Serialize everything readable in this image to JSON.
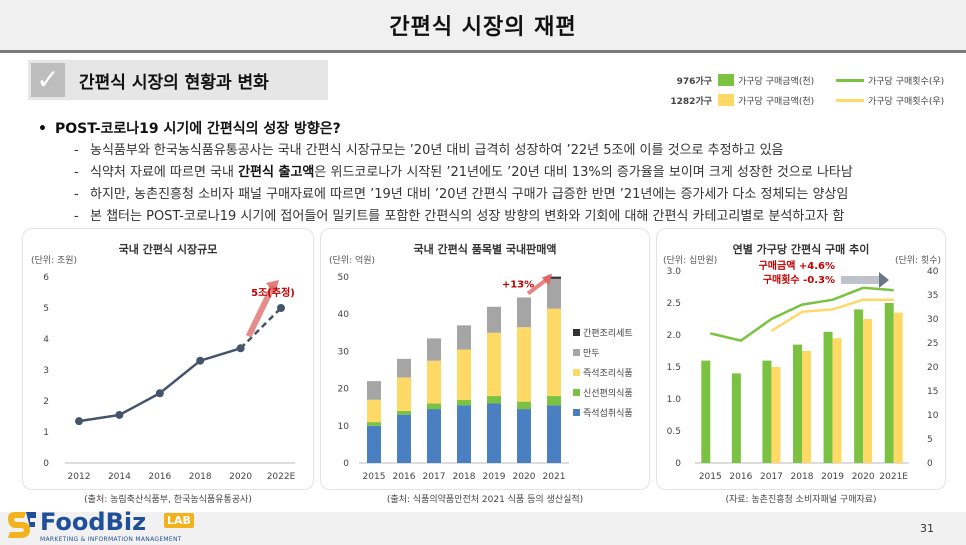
{
  "page": {
    "title": "간편식 시장의 재편",
    "section_title": "간편식 시장의 현황과 변화",
    "page_number": "31"
  },
  "legend": {
    "household_a": "976가구",
    "household_b": "1282가구",
    "bar_label": "가구당 구매금액(천)",
    "line_label": "가구당 구매횟수(우)",
    "colors": {
      "a_bar": "#7cc242",
      "a_line": "#7cc242",
      "b_bar": "#ffd966",
      "b_line": "#ffd966"
    }
  },
  "body": {
    "bullet": "POST-코로나19 시기에 간편식의 성장 방향은?",
    "lines": [
      {
        "pre": "농식품부와 한국농식품유통공사는 국내 간편식 시장규모는 ’20년 대비 급격히 성장하여 ’22년 5조에 이를 것으로 추정하고 있음",
        "bold": "",
        "post": ""
      },
      {
        "pre": "식약처 자료에 따르면 국내 ",
        "bold": "간편식 출고액",
        "post": "은 위드코로나가 시작된 ’21년에도 ’20년 대비 13%의 증가율을 보이며 크게 성장한 것으로 나타남"
      },
      {
        "pre": "하지만, 농촌진흥청 소비자 패널 구매자료에 따르면 ’19년 대비 ’20년 간편식 구매가 급증한 반면 ’21년에는 증가세가 다소 정체되는 양상임",
        "bold": "",
        "post": ""
      },
      {
        "pre": "본 챕터는 POST-코로나19 시기에 접어들어 밀키트를 포함한 간편식의 성장 방향의 변화와 기회에 대해 간편식 카테고리별로 분석하고자 함",
        "bold": "",
        "post": ""
      }
    ],
    "dash": "-"
  },
  "chart_data": [
    {
      "type": "line",
      "title": "국내 간편식 시장규모",
      "unit": "(단위: 조원)",
      "categories": [
        "2012",
        "2014",
        "2016",
        "2018",
        "2020",
        "2022E"
      ],
      "values": [
        1.35,
        1.55,
        2.25,
        3.3,
        3.7,
        5.0
      ],
      "estimated_last": true,
      "ylim": [
        0,
        6
      ],
      "yticks": [
        0,
        1,
        2,
        3,
        4,
        5,
        6
      ],
      "annotation": "5조(추정)",
      "source": "(출처: 농림축산식품부, 한국농식품유통공사)",
      "colors": {
        "line": "#44546a",
        "arrow": "#e06666"
      }
    },
    {
      "type": "bar",
      "stacked": true,
      "title": "국내 간편식 품목별 국내판매액",
      "unit": "(단위: 억원)",
      "categories": [
        "2015",
        "2016",
        "2017",
        "2018",
        "2019",
        "2020",
        "2021"
      ],
      "series": [
        {
          "name": "즉석섭취식품",
          "color": "#4a7fc1",
          "values": [
            10,
            13,
            14.5,
            15.5,
            16,
            14.5,
            15.5
          ]
        },
        {
          "name": "신선편의식품",
          "color": "#7cc242",
          "values": [
            1,
            1,
            1.5,
            1.5,
            2,
            2,
            2.5
          ]
        },
        {
          "name": "즉석조리식품",
          "color": "#ffd966",
          "values": [
            6,
            9,
            11.5,
            13.5,
            17,
            20,
            23.5
          ]
        },
        {
          "name": "만두",
          "color": "#a5a5a5",
          "values": [
            5,
            5,
            6,
            6.5,
            7,
            8,
            8
          ]
        },
        {
          "name": "간편조리세트",
          "color": "#333333",
          "values": [
            0,
            0,
            0,
            0,
            0,
            0,
            0.6
          ]
        }
      ],
      "ylim": [
        0,
        50
      ],
      "yticks": [
        0,
        10,
        20,
        30,
        40,
        50
      ],
      "annotation": "+13%",
      "source": "(출처: 식품의약품안전처 2021 식품 등의 생산실적)"
    },
    {
      "type": "bar",
      "title": "연별 가구당 간편식 구매 추이",
      "unit_left": "(단위: 십만원)",
      "unit_right": "(단위: 횟수)",
      "categories": [
        "2015",
        "2016",
        "2017",
        "2018",
        "2019",
        "2020",
        "2021E"
      ],
      "series": [
        {
          "name": "976가구 가구당 구매금액(천)",
          "kind": "bar",
          "axis": "left",
          "color": "#7cc242",
          "values": [
            1.6,
            1.4,
            1.6,
            1.85,
            2.05,
            2.4,
            2.5
          ]
        },
        {
          "name": "1282가구 가구당 구매금액(천)",
          "kind": "bar",
          "axis": "left",
          "color": "#ffd966",
          "values": [
            null,
            null,
            1.5,
            1.75,
            1.95,
            2.25,
            2.35
          ]
        },
        {
          "name": "976가구 가구당 구매횟수(우)",
          "kind": "line",
          "axis": "right",
          "color": "#7cc242",
          "values": [
            27,
            25.5,
            30,
            33,
            34,
            36.5,
            36
          ]
        },
        {
          "name": "1282가구 가구당 구매횟수(우)",
          "kind": "line",
          "axis": "right",
          "color": "#ffd966",
          "values": [
            null,
            null,
            27.5,
            31.5,
            32,
            34,
            34
          ]
        }
      ],
      "ylim_left": [
        0,
        3.0
      ],
      "yticks_left": [
        "0",
        "0.5",
        "1.0",
        "1.5",
        "2.0",
        "2.5",
        "3.0"
      ],
      "ylim_right": [
        0,
        40
      ],
      "yticks_right": [
        "0",
        "5",
        "10",
        "15",
        "20",
        "25",
        "30",
        "35",
        "40"
      ],
      "annotation_1": "구매금액 +4.6%",
      "annotation_2": "구매횟수 -0.3%",
      "source": "(자료: 농촌진흥청 소비자패널 구매자료)"
    }
  ],
  "logo": {
    "name": "FoodBiz",
    "lab": "LAB",
    "tagline": "MARKETING & INFORMATION MANAGEMENT"
  }
}
